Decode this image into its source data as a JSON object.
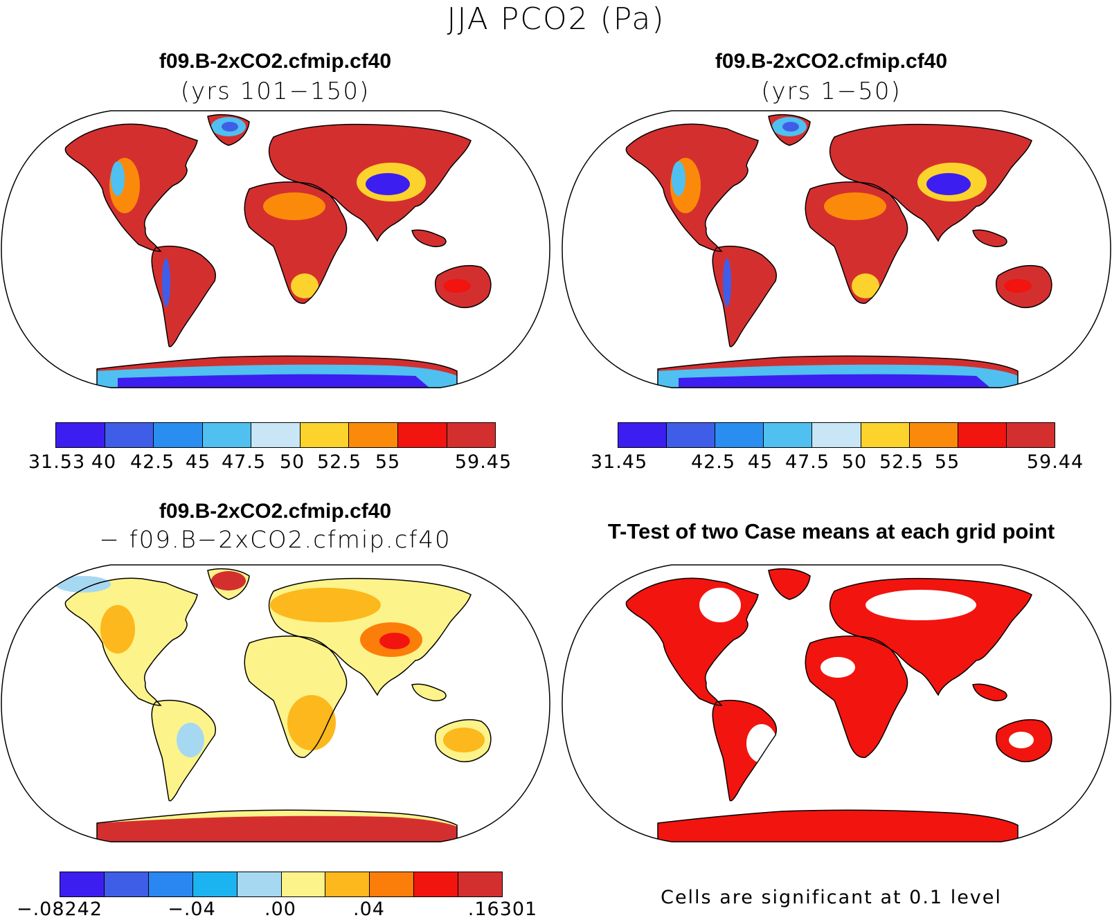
{
  "figure_title": "JJA PCO2 (Pa)",
  "panels": [
    {
      "title": "f09.B-2xCO2.cfmip.cf40",
      "subtitle": "(yrs 101−150)",
      "colorbar": {
        "colors": [
          "#3d1ef0",
          "#3f5ee8",
          "#2a8ef0",
          "#4fc0f0",
          "#c8e6f6",
          "#fcd32c",
          "#fc8a0a",
          "#f2140f",
          "#d42f2f"
        ],
        "labels": [
          "31.53",
          "40",
          "42.5",
          "45",
          "47.5",
          "50",
          "52.5",
          "55",
          "59.45"
        ]
      }
    },
    {
      "title": "f09.B-2xCO2.cfmip.cf40",
      "subtitle": "(yrs 1−50)",
      "colorbar": {
        "colors": [
          "#3d1ef0",
          "#3f5ee8",
          "#2a8ef0",
          "#4fc0f0",
          "#c8e6f6",
          "#fcd32c",
          "#fc8a0a",
          "#f2140f",
          "#d42f2f"
        ],
        "labels": [
          "31.45",
          "42.5",
          "45",
          "47.5",
          "50",
          "52.5",
          "55",
          "59.44"
        ]
      }
    },
    {
      "title": "f09.B-2xCO2.cfmip.cf40",
      "subtitle": "− f09.B−2xCO2.cfmip.cf40",
      "colorbar": {
        "colors": [
          "#3d1ef0",
          "#3f5ee8",
          "#2a86f0",
          "#1cb4f0",
          "#a6d8f2",
          "#fcf38a",
          "#fcb81c",
          "#fc7e0a",
          "#f2140f",
          "#d42f2f"
        ],
        "labels": [
          "−.08242",
          "−.04",
          ".00",
          ".04",
          ".16301"
        ]
      }
    },
    {
      "title": "T-Test of two Case means at each grid point",
      "note": "Cells are significant at 0.1 level",
      "sig_color": "#f2140f"
    }
  ]
}
